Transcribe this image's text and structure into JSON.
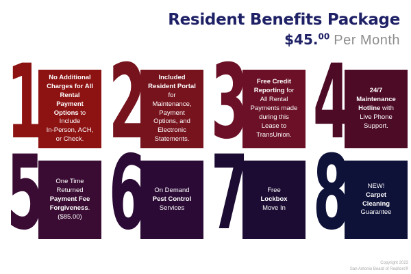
{
  "header": {
    "title": "Resident Benefits Package",
    "price": "$45.",
    "price_superscript": "00",
    "price_suffix": " Per Month"
  },
  "cards": [
    {
      "number": "1",
      "color": "#8d1212",
      "segments": [
        {
          "text": "No Additional\nCharges for All\nRental\nPayment\nOptions",
          "bold": true
        },
        {
          "text": " to\nInclude\nIn-Person, ACH,\nor Check.",
          "bold": false
        }
      ]
    },
    {
      "number": "2",
      "color": "#77131d",
      "segments": [
        {
          "text": "Included\nResident Portal",
          "bold": true
        },
        {
          "text": "\nfor\nMaintenance,\nPayment\nOptions, and\nElectronic\nStatements.",
          "bold": false
        }
      ]
    },
    {
      "number": "3",
      "color": "#6b1026",
      "segments": [
        {
          "text": "Free Credit\nReporting",
          "bold": true
        },
        {
          "text": " for\nAll Rental\nPayments made\nduring this\nLease to\nTransUnion.",
          "bold": false
        }
      ]
    },
    {
      "number": "4",
      "color": "#4e0b26",
      "segments": [
        {
          "text": "24/7\nMaintenance\nHotline",
          "bold": true
        },
        {
          "text": " with\nLive Phone\nSupport.",
          "bold": false
        }
      ]
    },
    {
      "number": "5",
      "color": "#3a0c33",
      "segments": [
        {
          "text": "One Time\nReturned\n",
          "bold": false
        },
        {
          "text": "Payment Fee\nForgiveness",
          "bold": true
        },
        {
          "text": ".\n($85.00)",
          "bold": false
        }
      ]
    },
    {
      "number": "6",
      "color": "#2c0a36",
      "segments": [
        {
          "text": "On Demand\n",
          "bold": false
        },
        {
          "text": "Pest Control",
          "bold": true
        },
        {
          "text": "\nServices",
          "bold": false
        }
      ]
    },
    {
      "number": "7",
      "color": "#1c0c33",
      "segments": [
        {
          "text": "Free\n",
          "bold": false
        },
        {
          "text": "Lockbox",
          "bold": true
        },
        {
          "text": "\nMove In",
          "bold": false
        }
      ]
    },
    {
      "number": "8",
      "color": "#0e1138",
      "segments": [
        {
          "text": "NEW!\n",
          "bold": false
        },
        {
          "text": "Carpet\nCleaning",
          "bold": true
        },
        {
          "text": "\nGuarantee",
          "bold": false
        }
      ]
    }
  ],
  "footer": {
    "line1": "Copyright 2023",
    "line2": "San Antonio Board of Realtors®"
  },
  "colors": {
    "title_navy": "#1f2166",
    "subtitle_gray": "#8d8d8d",
    "background": "#ffffff"
  }
}
